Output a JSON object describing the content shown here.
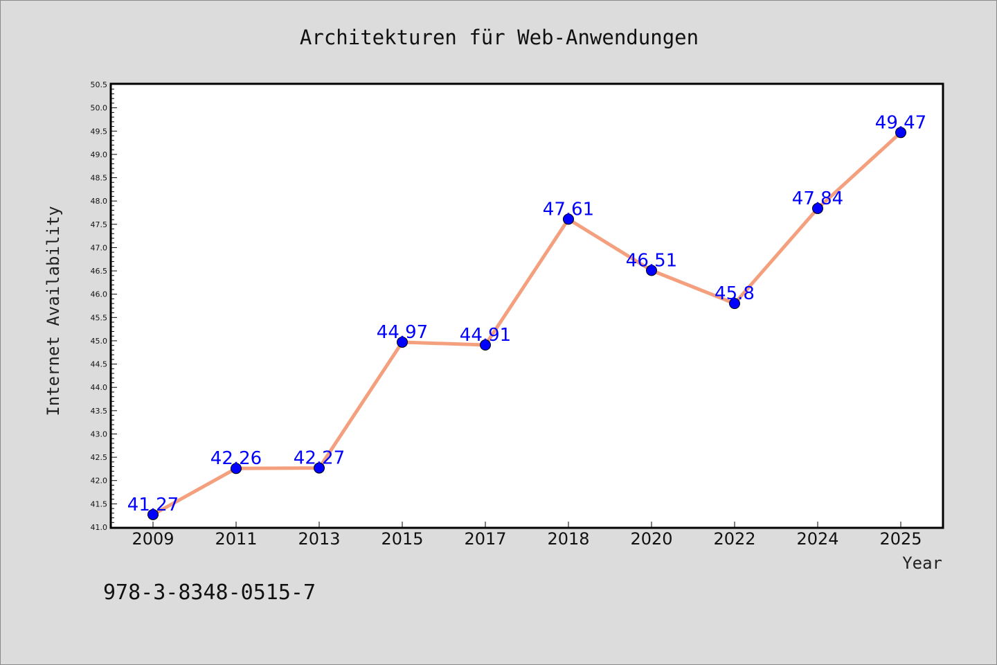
{
  "chart_data": {
    "type": "line",
    "title": "Architekturen für Web-Anwendungen",
    "xlabel": "Year",
    "ylabel": "Internet Availability",
    "categories": [
      "2009",
      "2011",
      "2013",
      "2015",
      "2017",
      "2018",
      "2020",
      "2022",
      "2024",
      "2025"
    ],
    "series": [
      {
        "values": [
          41.27,
          42.26,
          42.27,
          44.97,
          44.91,
          47.61,
          46.51,
          45.8,
          47.84,
          49.47
        ],
        "data_labels": [
          "41.27",
          "42.26",
          "42.27",
          "44.97",
          "44.91",
          "47.61",
          "46.51",
          "45.8",
          "47.84",
          "49.47"
        ]
      }
    ],
    "ylim": [
      41.0,
      50.5
    ],
    "yticks": [
      "41.0",
      "41.5",
      "42.0",
      "42.5",
      "43.0",
      "43.5",
      "44.0",
      "44.5",
      "45.0",
      "45.5",
      "46.0",
      "46.5",
      "47.0",
      "47.5",
      "48.0",
      "48.5",
      "49.0",
      "49.5",
      "50.0",
      "50.5"
    ],
    "grid": false,
    "line_color": "#f4a07e",
    "marker_color": "#0000ff",
    "label_color": "#0000ff"
  },
  "footer": {
    "isbn": "978-3-8348-0515-7"
  },
  "colors": {
    "background": "#dcdcdc",
    "plot_background": "#ffffff"
  }
}
